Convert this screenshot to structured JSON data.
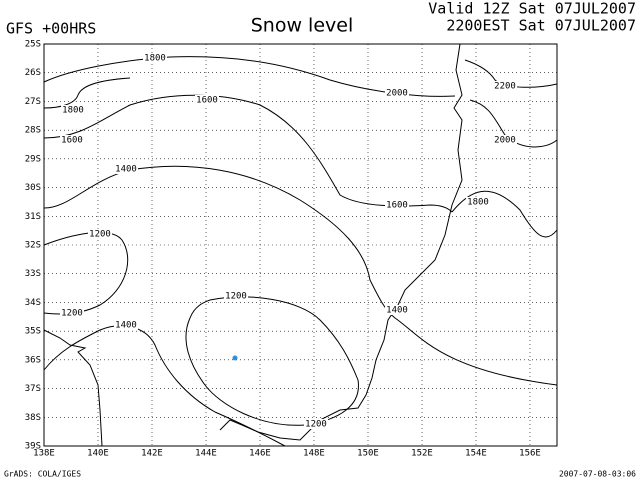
{
  "header": {
    "model": "GFS +00HRS",
    "title": "Snow level",
    "valid": "Valid 12Z Sat 07JUL2007",
    "local": "2200EST Sat 07JUL2007"
  },
  "map": {
    "lon_labels": [
      "138E",
      "140E",
      "142E",
      "144E",
      "146E",
      "148E",
      "150E",
      "152E",
      "154E",
      "156E"
    ],
    "lat_labels": [
      "25S",
      "26S",
      "27S",
      "28S",
      "29S",
      "30S",
      "31S",
      "32S",
      "33S",
      "34S",
      "35S",
      "36S",
      "37S",
      "38S",
      "39S"
    ],
    "contour_labels": [
      "1800",
      "1800",
      "1600",
      "1600",
      "2000",
      "2200",
      "2000",
      "1400",
      "1600",
      "1800",
      "1200",
      "1200",
      "1200",
      "1400",
      "1400",
      "1200"
    ]
  },
  "footer": {
    "credit": "GrADS: COLA/IGES",
    "timestamp": "2007-07-08-03:06"
  }
}
